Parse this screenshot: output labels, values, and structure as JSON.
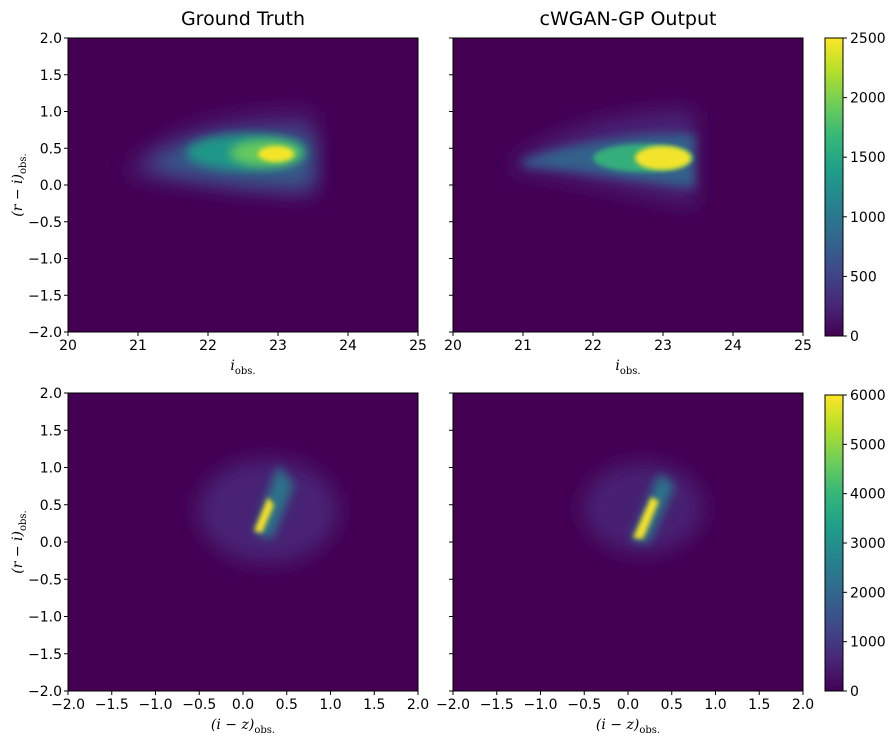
{
  "colors": {
    "viridis": [
      "#440154",
      "#482878",
      "#3e4a89",
      "#31688e",
      "#26828e",
      "#1f9e89",
      "#35b779",
      "#6ece58",
      "#b5de2b",
      "#fde725"
    ],
    "background": "#440154"
  },
  "chart_data": [
    {
      "type": "heatmap",
      "id": "gt-ri-vs-i",
      "title": "Ground Truth",
      "xlabel": "i_obs.",
      "ylabel": "(r − i)_obs.",
      "xlim": [
        20,
        25
      ],
      "ylim": [
        -2.0,
        2.0
      ],
      "xticks": [
        "20",
        "21",
        "22",
        "23",
        "24",
        "25"
      ],
      "yticks": [
        "−2.0",
        "−1.5",
        "−1.0",
        "−0.5",
        "0.0",
        "0.5",
        "1.0",
        "1.5",
        "2.0"
      ],
      "clim": [
        0,
        2500
      ],
      "colorbar": false,
      "density_peak": {
        "x": 22.9,
        "y": 0.38,
        "value": 2500
      },
      "magnitude_limit": 23.5
    },
    {
      "type": "heatmap",
      "id": "gan-ri-vs-i",
      "title": "cWGAN-GP Output",
      "xlabel": "i_obs.",
      "ylabel": "",
      "xlim": [
        20,
        25
      ],
      "ylim": [
        -2.0,
        2.0
      ],
      "xticks": [
        "20",
        "21",
        "22",
        "23",
        "24",
        "25"
      ],
      "yticks": [],
      "clim": [
        0,
        2500
      ],
      "colorbar": true,
      "colorbar_ticks": [
        "0",
        "500",
        "1000",
        "1500",
        "2000",
        "2500"
      ],
      "density_peak": {
        "x": 23.1,
        "y": 0.32,
        "value": 2500
      },
      "magnitude_limit": 23.4
    },
    {
      "type": "heatmap",
      "id": "gt-ri-vs-iz",
      "title": "",
      "xlabel": "(i − z)_obs.",
      "ylabel": "(r − i)_obs.",
      "xlim": [
        -2.0,
        2.0
      ],
      "ylim": [
        -2.0,
        2.0
      ],
      "xticks": [
        "−2.0",
        "−1.5",
        "−1.0",
        "−0.5",
        "0.0",
        "0.5",
        "1.0",
        "1.5",
        "2.0"
      ],
      "yticks": [
        "−2.0",
        "−1.5",
        "−1.0",
        "−0.5",
        "0.0",
        "0.5",
        "1.0",
        "1.5",
        "2.0"
      ],
      "clim": [
        0,
        6000
      ],
      "colorbar": false,
      "density_peak": {
        "x": 0.2,
        "y": 0.35,
        "value": 6000
      }
    },
    {
      "type": "heatmap",
      "id": "gan-ri-vs-iz",
      "title": "",
      "xlabel": "(i − z)_obs.",
      "ylabel": "",
      "xlim": [
        -2.0,
        2.0
      ],
      "ylim": [
        -2.0,
        2.0
      ],
      "xticks": [
        "−2.0",
        "−1.5",
        "−1.0",
        "−0.5",
        "0.0",
        "0.5",
        "1.0",
        "1.5",
        "2.0"
      ],
      "yticks": [],
      "clim": [
        0,
        6000
      ],
      "colorbar": true,
      "colorbar_ticks": [
        "0",
        "1000",
        "2000",
        "3000",
        "4000",
        "5000",
        "6000"
      ],
      "density_peak": {
        "x": 0.17,
        "y": 0.4,
        "value": 6000
      }
    }
  ]
}
